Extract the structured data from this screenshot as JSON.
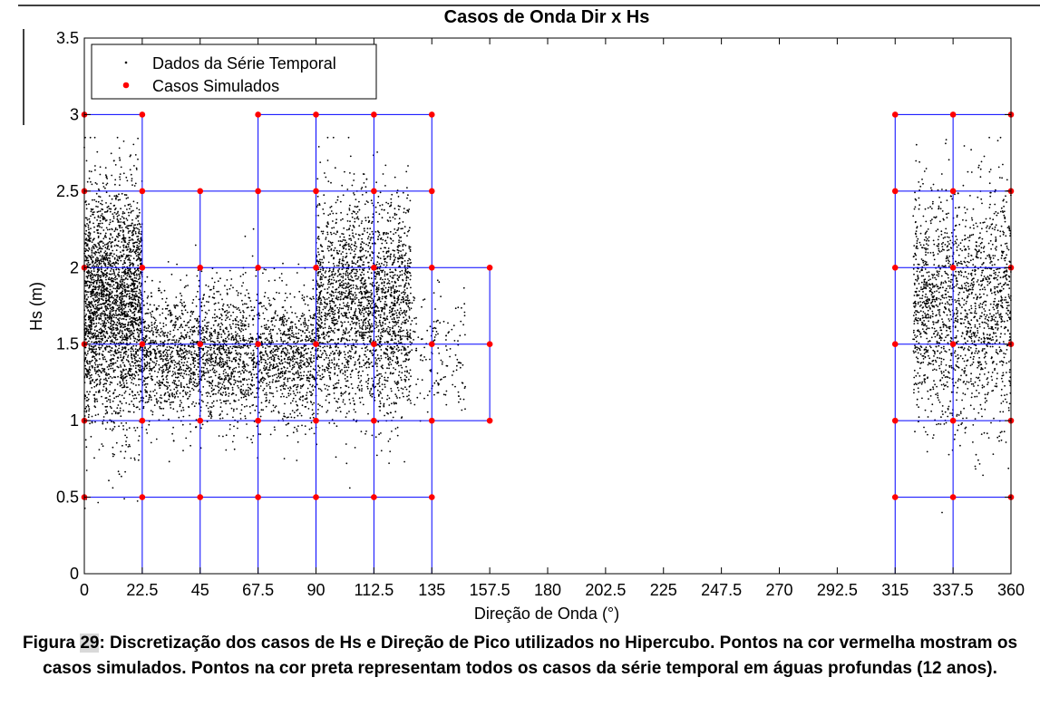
{
  "chart_data": {
    "type": "scatter",
    "title": "Casos de Onda Dir x Hs",
    "xlabel": "Direção de Onda (°)",
    "ylabel": "Hs (m)",
    "xlim": [
      0,
      360
    ],
    "ylim": [
      0,
      3.5
    ],
    "xticks": [
      "0",
      "22.5",
      "45",
      "67.5",
      "90",
      "112.5",
      "135",
      "157.5",
      "180",
      "202.5",
      "225",
      "247.5",
      "270",
      "292.5",
      "315",
      "337.5",
      "360"
    ],
    "yticks": [
      "0",
      "0.5",
      "1",
      "1.5",
      "2",
      "2.5",
      "3",
      "3.5"
    ],
    "legend_position": "top-left",
    "series": [
      {
        "name": "Dados da Série Temporal",
        "marker": "dot",
        "color": "#000000",
        "clusters": [
          {
            "x_range": [
              0,
              22.5
            ],
            "y_mean": 1.75,
            "y_sd": 0.38,
            "n": 2600
          },
          {
            "x_range": [
              22.5,
              90
            ],
            "y_mean": 1.42,
            "y_sd": 0.22,
            "n": 2600
          },
          {
            "x_range": [
              90,
              127
            ],
            "y_mean": 1.75,
            "y_sd": 0.35,
            "n": 2400
          },
          {
            "x_range": [
              127,
              148
            ],
            "y_mean": 1.45,
            "y_sd": 0.18,
            "n": 150
          },
          {
            "x_range": [
              322,
              360
            ],
            "y_mean": 1.75,
            "y_sd": 0.38,
            "n": 1800
          }
        ]
      },
      {
        "name": "Casos Simulados",
        "marker": "circle",
        "color": "#ff0000",
        "points": [
          [
            0,
            3
          ],
          [
            22.5,
            3
          ],
          [
            67.5,
            3
          ],
          [
            90,
            3
          ],
          [
            112.5,
            3
          ],
          [
            135,
            3
          ],
          [
            315,
            3
          ],
          [
            337.5,
            3
          ],
          [
            360,
            3
          ],
          [
            0,
            2.5
          ],
          [
            22.5,
            2.5
          ],
          [
            45,
            2.5
          ],
          [
            67.5,
            2.5
          ],
          [
            90,
            2.5
          ],
          [
            112.5,
            2.5
          ],
          [
            135,
            2.5
          ],
          [
            315,
            2.5
          ],
          [
            337.5,
            2.5
          ],
          [
            360,
            2.5
          ],
          [
            0,
            2
          ],
          [
            22.5,
            2
          ],
          [
            45,
            2
          ],
          [
            67.5,
            2
          ],
          [
            90,
            2
          ],
          [
            112.5,
            2
          ],
          [
            135,
            2
          ],
          [
            157.5,
            2
          ],
          [
            315,
            2
          ],
          [
            337.5,
            2
          ],
          [
            360,
            2
          ],
          [
            0,
            1.5
          ],
          [
            22.5,
            1.5
          ],
          [
            45,
            1.5
          ],
          [
            67.5,
            1.5
          ],
          [
            90,
            1.5
          ],
          [
            112.5,
            1.5
          ],
          [
            135,
            1.5
          ],
          [
            157.5,
            1.5
          ],
          [
            315,
            1.5
          ],
          [
            337.5,
            1.5
          ],
          [
            360,
            1.5
          ],
          [
            0,
            1
          ],
          [
            22.5,
            1
          ],
          [
            45,
            1
          ],
          [
            67.5,
            1
          ],
          [
            90,
            1
          ],
          [
            112.5,
            1
          ],
          [
            135,
            1
          ],
          [
            157.5,
            1
          ],
          [
            315,
            1
          ],
          [
            337.5,
            1
          ],
          [
            360,
            1
          ],
          [
            0,
            0.5
          ],
          [
            22.5,
            0.5
          ],
          [
            45,
            0.5
          ],
          [
            67.5,
            0.5
          ],
          [
            90,
            0.5
          ],
          [
            112.5,
            0.5
          ],
          [
            135,
            0.5
          ],
          [
            315,
            0.5
          ],
          [
            337.5,
            0.5
          ],
          [
            360,
            0.5
          ]
        ]
      }
    ],
    "grid_lines": {
      "color": "#0000ff",
      "vertical": [
        {
          "x": 0,
          "y": [
            0,
            3
          ]
        },
        {
          "x": 22.5,
          "y": [
            0,
            3
          ]
        },
        {
          "x": 45,
          "y": [
            0,
            2.5
          ]
        },
        {
          "x": 67.5,
          "y": [
            0,
            3
          ]
        },
        {
          "x": 90,
          "y": [
            0,
            3
          ]
        },
        {
          "x": 112.5,
          "y": [
            0,
            3
          ]
        },
        {
          "x": 135,
          "y": [
            0,
            3
          ]
        },
        {
          "x": 157.5,
          "y": [
            1,
            2
          ]
        },
        {
          "x": 315,
          "y": [
            0,
            3
          ]
        },
        {
          "x": 337.5,
          "y": [
            0,
            3
          ]
        },
        {
          "x": 360,
          "y": [
            0,
            3
          ]
        }
      ],
      "horizontal": [
        {
          "y": 3,
          "x": [
            [
              0,
              22.5
            ],
            [
              67.5,
              135
            ],
            [
              315,
              360
            ]
          ]
        },
        {
          "y": 2.5,
          "x": [
            [
              0,
              135
            ],
            [
              315,
              360
            ]
          ]
        },
        {
          "y": 2,
          "x": [
            [
              0,
              157.5
            ],
            [
              315,
              360
            ]
          ]
        },
        {
          "y": 1.5,
          "x": [
            [
              0,
              157.5
            ],
            [
              315,
              360
            ]
          ]
        },
        {
          "y": 1,
          "x": [
            [
              0,
              157.5
            ],
            [
              315,
              360
            ]
          ]
        },
        {
          "y": 0.5,
          "x": [
            [
              0,
              135
            ],
            [
              315,
              360
            ]
          ]
        }
      ]
    }
  },
  "caption": {
    "prefix": "Figura ",
    "number": "29",
    "text": ": Discretização dos casos de Hs e Direção de Pico utilizados no Hipercubo. Pontos na cor vermelha mostram os casos simulados. Pontos na cor preta representam todos os casos da série temporal em águas profundas (12 anos)."
  }
}
